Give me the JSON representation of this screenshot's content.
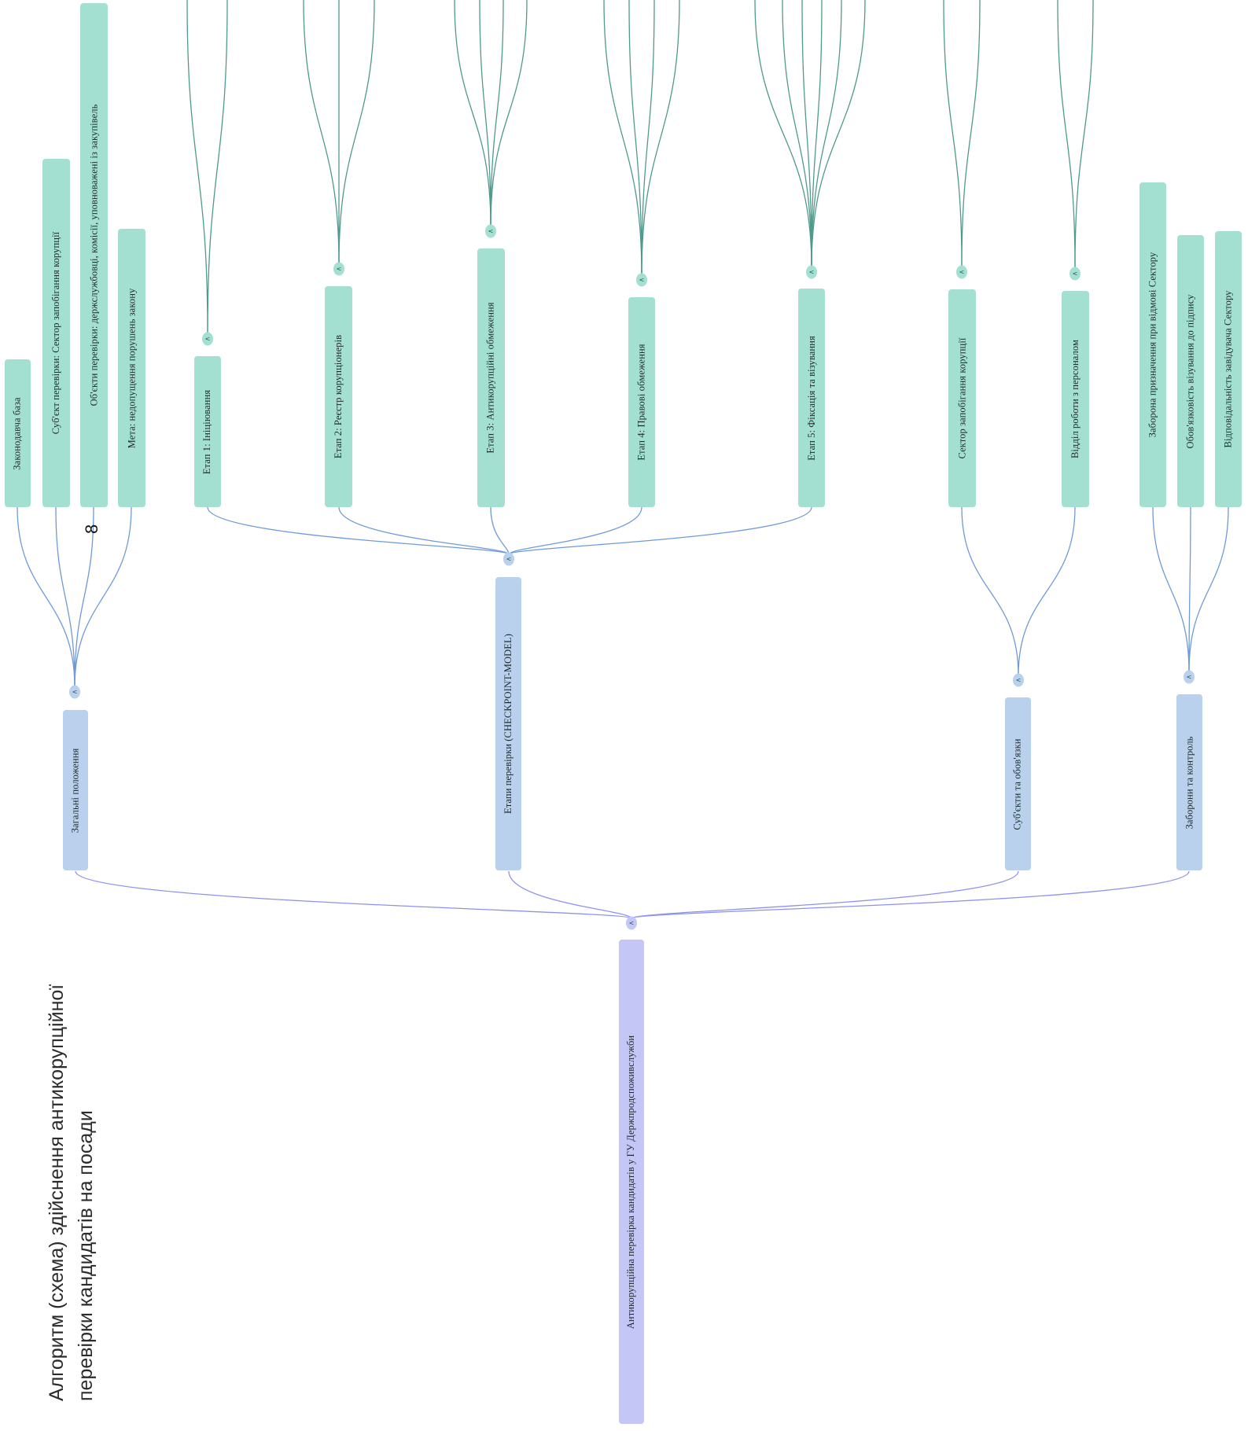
{
  "title": {
    "line1": "Алгоритм (схема) здійснення антикорупційної",
    "line2": "перевірки кандидатів на посади"
  },
  "page_number": "8",
  "toggle_glyph": "<",
  "colors": {
    "root_fill": "#c4c6f6",
    "level1_fill": "#b9d1ec",
    "level2_fill": "#a3e0d1",
    "root_link": "#8e91ee",
    "level1_link": "#6f9ad8",
    "level2_link": "#4f9a8b"
  },
  "root": {
    "label": "Антикорупційна перевірка кандидатів у ГУ Держпродспоживслужби"
  },
  "groups": [
    {
      "label": "Загальні положення",
      "children": [
        "Законодавча база",
        "Суб'єкт перевірки: Сектор запобігання корупції",
        "Об'єкти перевірки: держслужбовці, комісії, уповноважені із закупівель",
        "Мета: недопущення порушень закону"
      ]
    },
    {
      "label": "Етапи перевірки (CHECKPOINT-MODEL)",
      "children": [
        "Етап 1: Ініціювання",
        "Етап 2: Реєстр корупціонерів",
        "Етап 3: Антикорупційні обмеження",
        "Етап 4: Правові обмеження",
        "Етап 5: Фіксація та візування"
      ]
    },
    {
      "label": "Суб'єкти та обов'язки",
      "children": [
        "Сектор запобігання корупції",
        "Відділ роботи з персоналом"
      ]
    },
    {
      "label": "Заборони та контроль",
      "children": [
        "Заборона призначення при відмові Сектору",
        "Обов'язковість візування до підпису",
        "Відповідальність завідувача Сектору"
      ]
    }
  ]
}
